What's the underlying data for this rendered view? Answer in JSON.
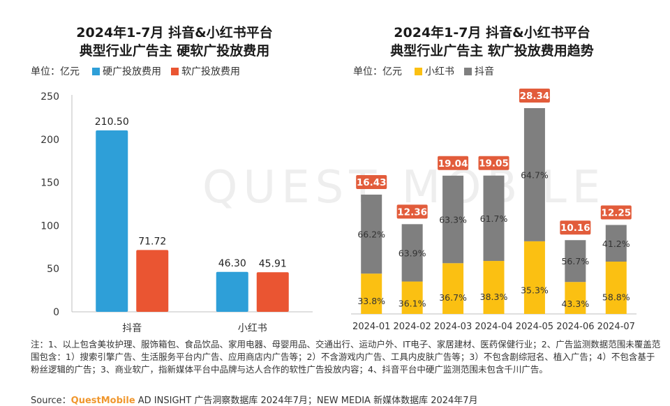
{
  "watermark": "QUEST MOBILE",
  "left_chart": {
    "title_line1": "2024年1-7月 抖音&小红书平台",
    "title_line2": "典型行业广告主 硬软广投放费用",
    "unit": "单位：亿元",
    "legend": [
      {
        "label": "硬广投放费用",
        "color": "#2e9fd8"
      },
      {
        "label": "软广投放费用",
        "color": "#ea5532"
      }
    ]
  },
  "right_chart": {
    "title_line1": "2024年1-7月 抖音&小红书平台",
    "title_line2": "典型行业广告主 软广投放费用趋势",
    "unit": "单位：亿元",
    "legend": [
      {
        "label": "小红书",
        "color": "#fbc012"
      },
      {
        "label": "抖音",
        "color": "#7f7f7f"
      }
    ]
  },
  "chart_data": [
    {
      "type": "bar",
      "title": "2024年1-7月 抖音&小红书平台 典型行业广告主 硬软广投放费用",
      "unit": "单位：亿元",
      "categories": [
        "抖音",
        "小红书"
      ],
      "series": [
        {
          "name": "硬广投放费用",
          "values": [
            210.5,
            46.3
          ],
          "labels": [
            "210.50",
            "46.30"
          ],
          "color": "#2e9fd8"
        },
        {
          "name": "软广投放费用",
          "values": [
            71.72,
            45.91
          ],
          "labels": [
            "71.72",
            "45.91"
          ],
          "color": "#ea5532"
        }
      ],
      "ylim": [
        0,
        250
      ],
      "yticks": [
        0,
        50,
        100,
        150,
        200,
        250
      ],
      "grid": false,
      "legend": "top-left"
    },
    {
      "type": "bar",
      "stacked": true,
      "title": "2024年1-7月 抖音&小红书平台 典型行业广告主 软广投放费用趋势",
      "unit": "单位：亿元",
      "categories": [
        "2024-01",
        "2024-02",
        "2024-03",
        "2024-04",
        "2024-05",
        "2024-06",
        "2024-07"
      ],
      "totals": [
        16.43,
        12.36,
        19.04,
        19.05,
        28.34,
        10.16,
        12.25
      ],
      "total_labels": [
        "16.43",
        "12.36",
        "19.04",
        "19.05",
        "28.34",
        "10.16",
        "12.25"
      ],
      "series": [
        {
          "name": "小红书",
          "share": [
            33.8,
            36.1,
            36.7,
            38.3,
            35.3,
            43.3,
            58.8
          ],
          "labels": [
            "33.8%",
            "36.1%",
            "36.7%",
            "38.3%",
            "35.3%",
            "43.3%",
            "58.8%"
          ],
          "color": "#fbc012"
        },
        {
          "name": "抖音",
          "share": [
            66.2,
            63.9,
            63.3,
            61.7,
            64.7,
            56.7,
            41.2
          ],
          "labels": [
            "66.2%",
            "63.9%",
            "63.3%",
            "61.7%",
            "64.7%",
            "56.7%",
            "41.2%"
          ],
          "color": "#7f7f7f"
        }
      ],
      "total_label_color": "#e25c3b",
      "legend": "top-left"
    }
  ],
  "footnote": "注：1、以上包含美妆护理、服饰箱包、食品饮品、家用电器、母婴用品、交通出行、运动户外、IT电子、家居建材、医药保健行业；2、广告监测数据范围未覆盖范围包含：1）搜索引擎广告、生活服务平台内广告、应用商店内广告等；2）不含游戏内广告、工具内皮肤广告等；3）不包含剧综冠名、植入广告；4）不包含基于粉丝逻辑的广告；3、商业软广，指新媒体平台中品牌与达人合作的软性广告投放内容；4、抖音平台中硬广监测范围未包含千川广告。",
  "source": {
    "prefix": "Source：",
    "brand": "QuestMobile",
    "rest": " AD INSIGHT 广告洞察数据库 2024年7月；NEW MEDIA 新媒体数据库 2024年7月"
  }
}
